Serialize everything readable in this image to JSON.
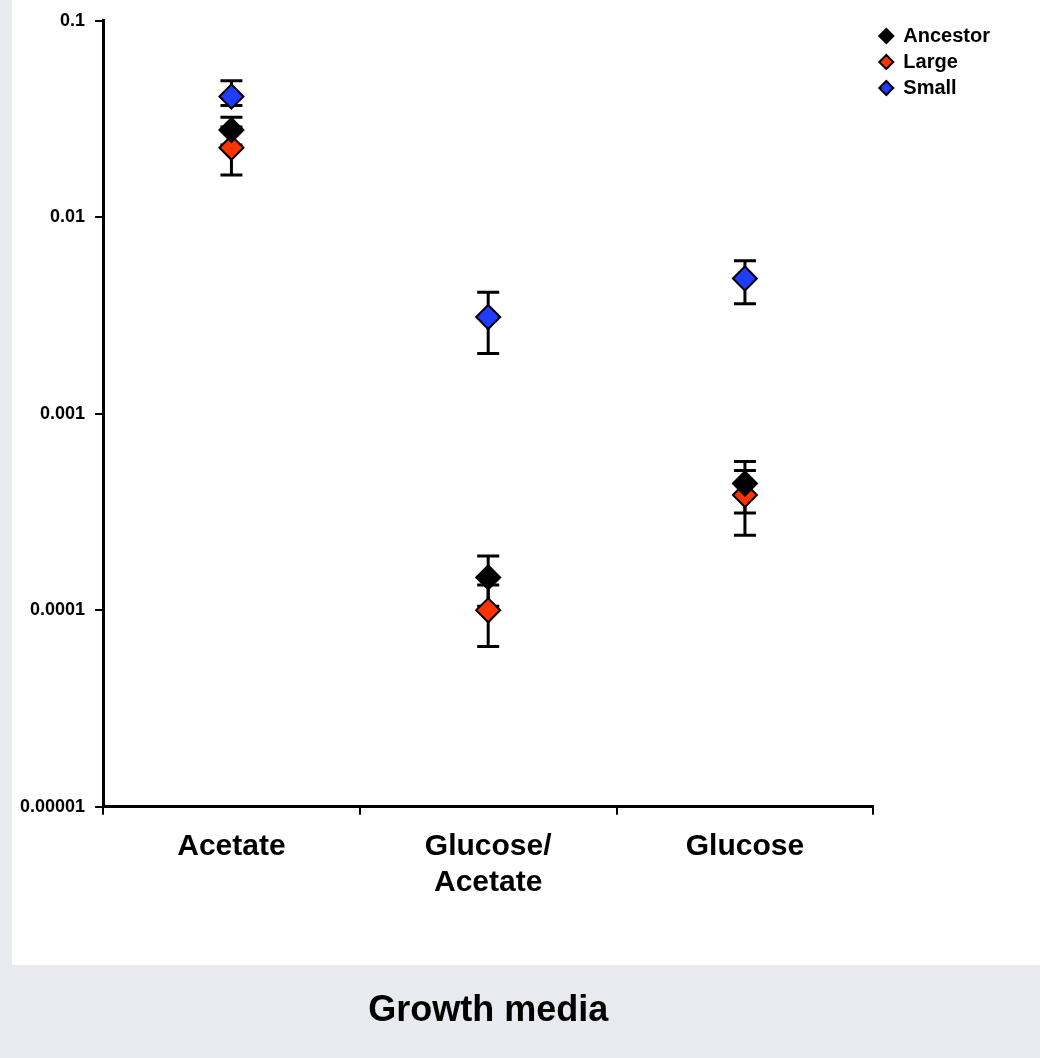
{
  "chart_data": {
    "type": "scatter",
    "xlabel": "Growth media",
    "categories": [
      "Acetate",
      "Glucose/ Acetate",
      "Glucose"
    ],
    "series": [
      {
        "name": "Ancestor",
        "color": "#000000",
        "values": [
          0.0278,
          0.000147,
          0.000442
        ],
        "errors": [
          0.0045,
          4.2e-05,
          0.000129
        ]
      },
      {
        "name": "Large",
        "color": "#ff3300",
        "values": [
          0.0226,
          0.0001,
          0.000386
        ],
        "errors": [
          0.0062,
          3.45e-05,
          [
            0.000241,
            0.000515
          ]
        ]
      },
      {
        "name": "Small",
        "color": "#1f3cff",
        "values": [
          0.0412,
          0.00311,
          0.00488
        ],
        "errors": [
          [
            0.0371,
            0.0495
          ],
          [
            0.00203,
            0.00415
          ],
          [
            0.00363,
            0.00601
          ]
        ]
      }
    ],
    "ylim": [
      1e-05,
      0.1
    ],
    "yticks": [
      {
        "value": 1e-05,
        "label": "0.00001"
      },
      0.0001,
      0.001,
      0.01,
      0.1
    ],
    "log": "y",
    "grid": false,
    "legend": "top right",
    "marker": "diamond"
  }
}
